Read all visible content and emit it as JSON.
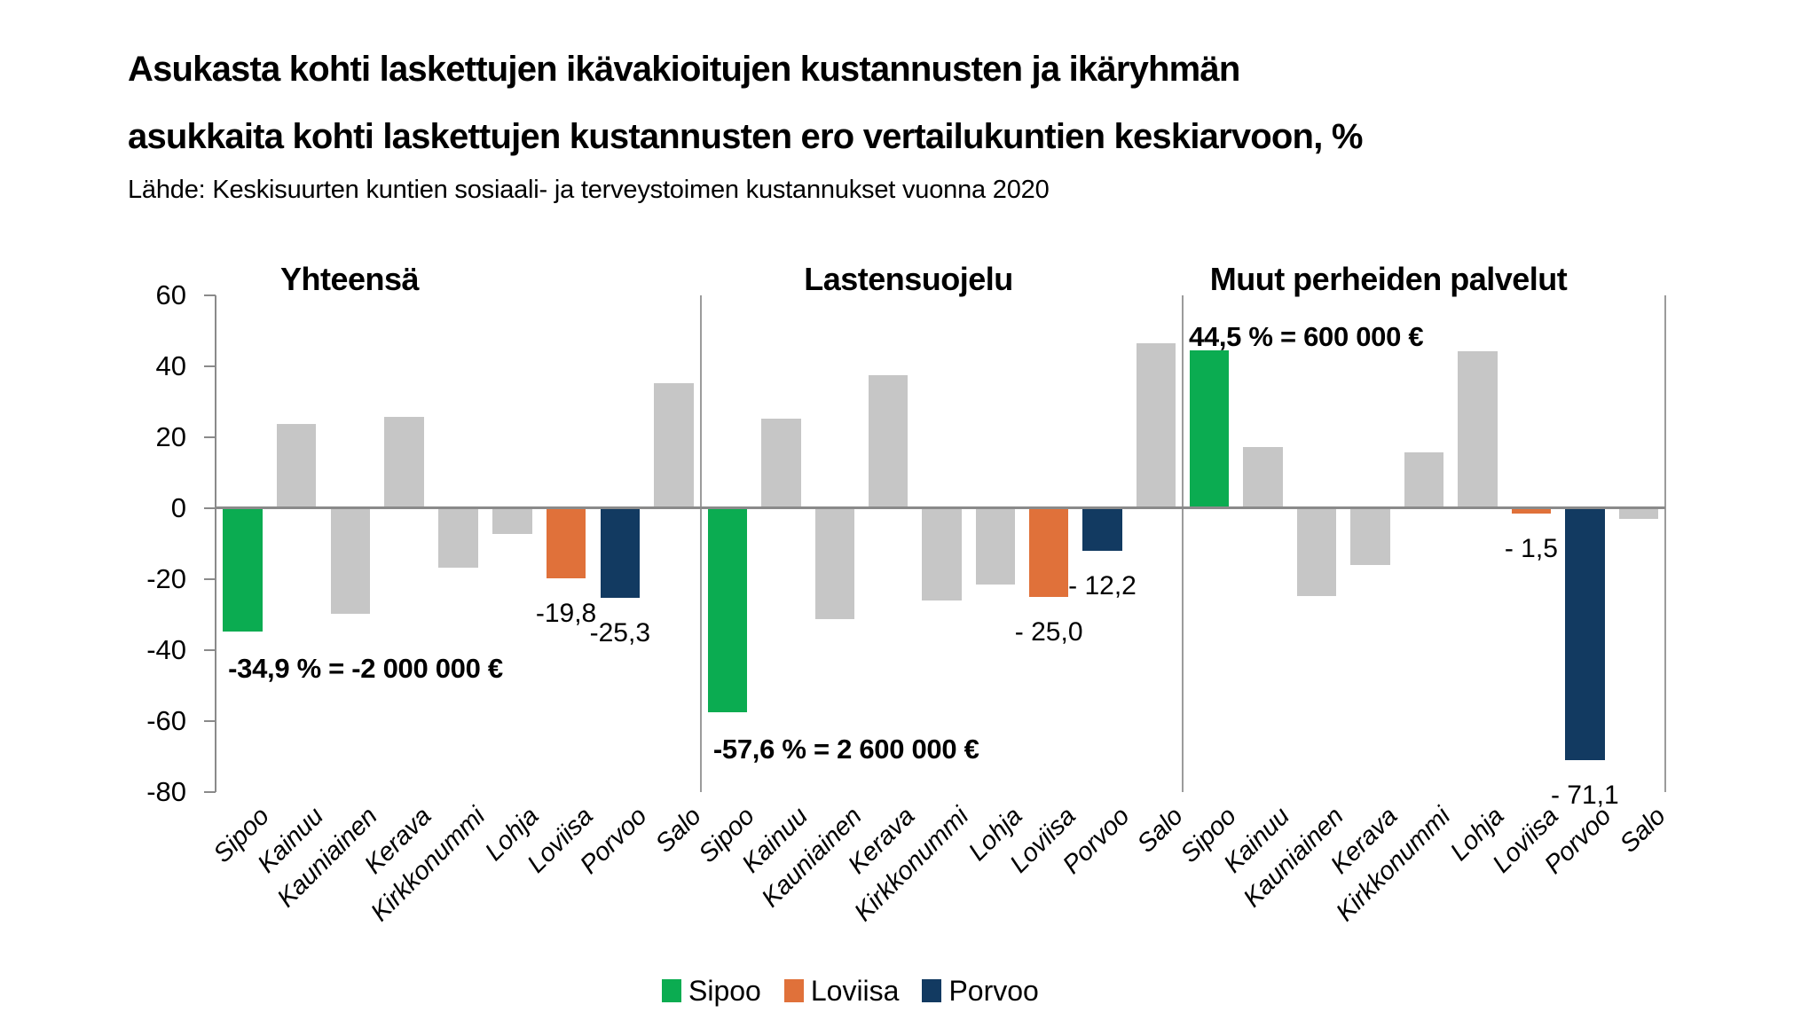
{
  "header": {
    "title_line1": "Asukasta kohti laskettujen ikävakioitujen kustannusten ja ikäryhmän",
    "title_line2": "asukkaita kohti laskettujen kustannusten ero vertailukuntien keskiarvoon, %",
    "source": "Lähde: Keskisuurten kuntien sosiaali- ja terveystoimen kustannukset vuonna 2020"
  },
  "chart_data": {
    "type": "bar",
    "title": "Asukasta kohti laskettujen ikävakioitujen kustannusten ja ikäryhmän asukkaita kohti laskettujen kustannusten ero vertailukuntien keskiarvoon, %",
    "source": "Lähde: Keskisuurten kuntien sosiaali- ja terveystoimen kustannukset vuonna 2020",
    "unit": "%",
    "ylim": [
      -80,
      60
    ],
    "yticks": [
      60,
      40,
      20,
      0,
      -20,
      -40,
      -60,
      -80
    ],
    "grid": "zero-line-only",
    "legend_position": "bottom",
    "categories": [
      "Sipoo",
      "Kainuu",
      "Kauniainen",
      "Kerava",
      "Kirkkonummi",
      "Lohja",
      "Loviisa",
      "Porvoo",
      "Salo"
    ],
    "colors": {
      "highlighted": {
        "Sipoo": "#0bac51",
        "Loviisa": "#e0713a",
        "Porvoo": "#123a61"
      },
      "bar_default": "#c6c6c6",
      "axis": "#8a8a8a",
      "divider": "#9b9b9b",
      "text": "#000000"
    },
    "panels": [
      {
        "title": "Yhteensä",
        "values": [
          -34.9,
          23.6,
          -29.9,
          25.6,
          -16.9,
          -7.4,
          -19.8,
          -25.3,
          35.2
        ],
        "bar_labels": {
          "Loviisa": "-19,8",
          "Porvoo": "-25,3"
        },
        "callout": {
          "text": "-34,9 % = -2 000 000 €",
          "anchor": "Sipoo",
          "position": "below"
        }
      },
      {
        "title": "Lastensuojelu",
        "values": [
          -57.6,
          25.2,
          -31.4,
          37.3,
          -26.1,
          -21.5,
          -25.0,
          -12.2,
          46.3
        ],
        "bar_labels": {
          "Loviisa": "- 25,0",
          "Porvoo": "- 12,2"
        },
        "callout": {
          "text": "-57,6 % = 2 600 000 €",
          "anchor": "Sipoo",
          "position": "below"
        }
      },
      {
        "title": "Muut perheiden palvelut",
        "values": [
          44.5,
          17.2,
          -24.8,
          -16.0,
          15.6,
          44.1,
          -1.5,
          -71.1,
          -3.1
        ],
        "bar_labels": {
          "Loviisa": "- 1,5",
          "Porvoo": "- 71,1"
        },
        "callout": {
          "text": "44,5 % = 600 000 €",
          "anchor": "Sipoo",
          "position": "above"
        }
      }
    ],
    "legend": [
      {
        "label": "Sipoo",
        "color": "#0bac51"
      },
      {
        "label": "Loviisa",
        "color": "#e0713a"
      },
      {
        "label": "Porvoo",
        "color": "#123a61"
      }
    ]
  }
}
